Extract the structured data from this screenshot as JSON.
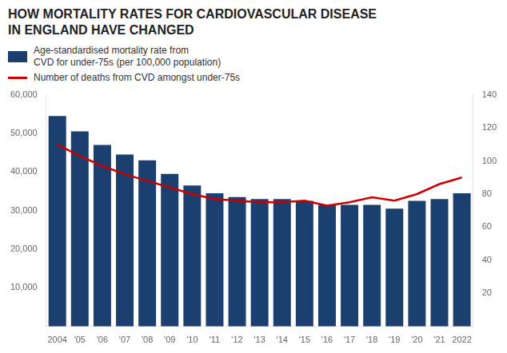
{
  "chart_data": {
    "type": "bar",
    "title": "HOW MORTALITY RATES FOR CARDIOVASCULAR DISEASE\nIN ENGLAND HAVE CHANGED",
    "categories": [
      "2004",
      "'05",
      "'06",
      "'07",
      "'08",
      "'09",
      "'10",
      "'11",
      "'12",
      "'13",
      "'14",
      "'15",
      "'16",
      "'17",
      "'18",
      "'19",
      "'20",
      "'21",
      "2022"
    ],
    "series": [
      {
        "name": "Age-standardised mortality rate from\nCVD for under-75s (per 100,000 population)",
        "type": "bar",
        "color": "#1b3f6e",
        "values": [
          54500,
          50500,
          47000,
          44500,
          43000,
          39500,
          36500,
          34500,
          33500,
          33000,
          33000,
          32500,
          31500,
          31500,
          31500,
          30500,
          32500,
          33000,
          34500
        ]
      },
      {
        "name": "Number of deaths from CVD amongst under-75s",
        "type": "line",
        "color": "#cc0000",
        "axis": "y2",
        "values": [
          110,
          103,
          97,
          92,
          88,
          84,
          80,
          77,
          76,
          75,
          75,
          76,
          73,
          75,
          78,
          76,
          80,
          86,
          90
        ]
      }
    ],
    "ylim": [
      0,
      60000
    ],
    "yticks": [
      {
        "value": 10000,
        "label": "10,000"
      },
      {
        "value": 20000,
        "label": "20,000"
      },
      {
        "value": 30000,
        "label": "30,000"
      },
      {
        "value": 40000,
        "label": "40,000"
      },
      {
        "value": 50000,
        "label": "50,000"
      },
      {
        "value": 60000,
        "label": "60,000"
      }
    ],
    "y2lim": [
      0,
      140
    ],
    "y2ticks": [
      20,
      40,
      60,
      80,
      100,
      120,
      140
    ],
    "grid": false,
    "legend": "top"
  }
}
